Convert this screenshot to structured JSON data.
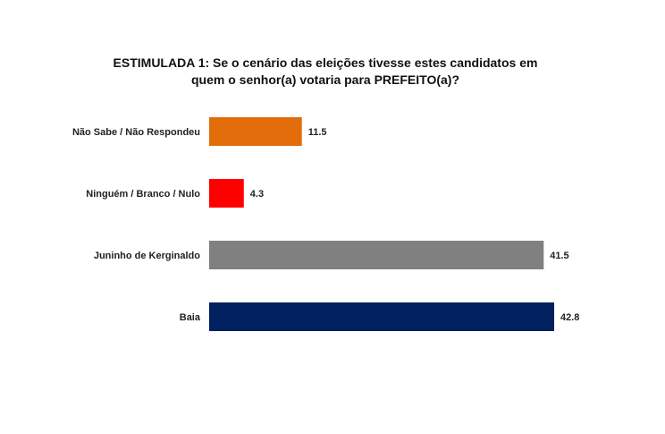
{
  "chart_data": {
    "type": "bar",
    "orientation": "horizontal",
    "title": "ESTIMULADA 1: Se o cenário das eleições tivesse estes candidatos em quem o senhor(a) votaria para PREFEITO(a)?",
    "title_lines": [
      "ESTIMULADA 1: Se o cenário das eleições tivesse estes candidatos em",
      "quem o senhor(a) votaria para PREFEITO(a)?"
    ],
    "categories": [
      "Não Sabe / Não Respondeu",
      "Ninguém / Branco / Nulo",
      "Juninho de Kerginaldo",
      "Baia"
    ],
    "values": [
      11.5,
      4.3,
      41.5,
      42.8
    ],
    "value_labels": [
      "11.5",
      "4.3",
      "41.5",
      "42.8"
    ],
    "colors": [
      "#E36C0A",
      "#FF0000",
      "#808080",
      "#002060"
    ],
    "xlim": [
      0,
      42.8
    ],
    "grid": false,
    "legend": "none"
  }
}
